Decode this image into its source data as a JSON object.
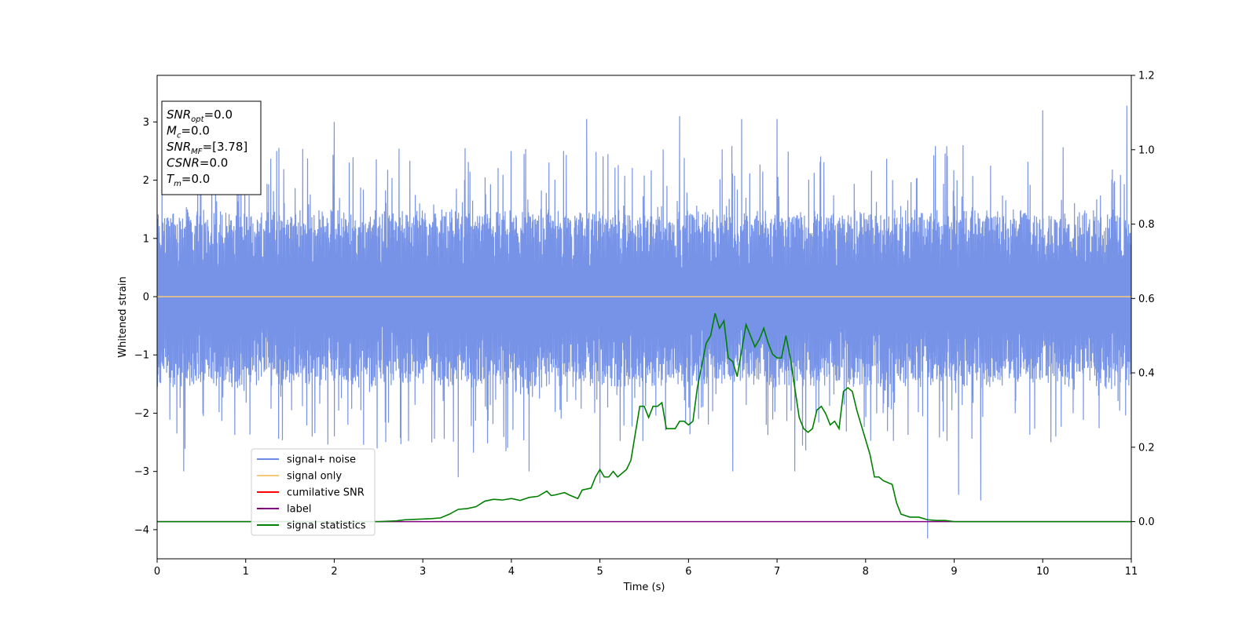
{
  "chart_data": {
    "type": "line",
    "xlabel": "Time (s)",
    "ylabel": "Whitened strain",
    "xlim": [
      0,
      11
    ],
    "ylim": [
      -4.5,
      3.8
    ],
    "y2lim": [
      -0.1,
      1.2
    ],
    "x_ticks": [
      0,
      1,
      2,
      3,
      4,
      5,
      6,
      7,
      8,
      9,
      10,
      11
    ],
    "y_ticks": [
      -4,
      -3,
      -2,
      -1,
      0,
      1,
      2,
      3
    ],
    "y2_ticks": [
      0.0,
      0.2,
      0.4,
      0.6,
      0.8,
      1.0,
      1.2
    ],
    "legend_position": "lower-left",
    "legend": [
      "signal+ noise",
      "signal only",
      "cumilative SNR",
      "label",
      "signal statistics"
    ],
    "colors": {
      "signal_noise": "#6b8ae6",
      "signal_only": "#f5c97a",
      "cumulative_snr": "#ff0000",
      "label": "#800080",
      "signal_statistics": "#008000"
    },
    "info_box": [
      {
        "var": "SNR",
        "sub": "opt",
        "value": "=0.0"
      },
      {
        "var": "M",
        "sub": "c",
        "value": "=0.0"
      },
      {
        "var": "SNR",
        "sub": "MF",
        "value": "=[3.78]"
      },
      {
        "var": "CSNR",
        "sub": "",
        "value": "=0.0"
      },
      {
        "var": "T",
        "sub": "m",
        "value": "=0.0"
      }
    ],
    "series": [
      {
        "name": "signal+ noise",
        "axis": "left",
        "note_shape": "dense noise band",
        "band_low_typical": -1.5,
        "band_high_typical": 1.45,
        "extreme_peaks": [
          {
            "x": 2.0,
            "y": 3.0
          },
          {
            "x": 4.85,
            "y": 3.05
          },
          {
            "x": 5.9,
            "y": 3.1
          },
          {
            "x": 10.0,
            "y": 3.2
          },
          {
            "x": 10.95,
            "y": 3.28
          },
          {
            "x": 6.6,
            "y": 3.05
          },
          {
            "x": 7.0,
            "y": 3.05
          },
          {
            "x": 1.35,
            "y": 2.5
          },
          {
            "x": 9.1,
            "y": 2.6
          }
        ],
        "extreme_troughs": [
          {
            "x": 0.3,
            "y": -3.0
          },
          {
            "x": 3.4,
            "y": -3.1
          },
          {
            "x": 5.0,
            "y": -3.2
          },
          {
            "x": 8.7,
            "y": -4.15
          },
          {
            "x": 9.05,
            "y": -3.4
          },
          {
            "x": 9.3,
            "y": -3.5
          },
          {
            "x": 6.5,
            "y": -3.0
          },
          {
            "x": 7.2,
            "y": -3.0
          },
          {
            "x": 4.2,
            "y": -3.0
          }
        ]
      },
      {
        "name": "signal only",
        "axis": "left",
        "x": [
          0,
          11
        ],
        "y": [
          0,
          0
        ]
      },
      {
        "name": "label",
        "axis": "right",
        "x": [
          0,
          11
        ],
        "y": [
          0,
          0
        ]
      },
      {
        "name": "signal statistics",
        "axis": "right",
        "x": [
          0.0,
          0.5,
          1.0,
          1.5,
          2.0,
          2.5,
          2.7,
          2.8,
          2.9,
          3.0,
          3.1,
          3.2,
          3.3,
          3.4,
          3.5,
          3.6,
          3.7,
          3.8,
          3.9,
          4.0,
          4.1,
          4.2,
          4.3,
          4.4,
          4.45,
          4.5,
          4.6,
          4.65,
          4.75,
          4.8,
          4.9,
          4.95,
          5.0,
          5.05,
          5.1,
          5.15,
          5.2,
          5.3,
          5.35,
          5.45,
          5.5,
          5.55,
          5.6,
          5.65,
          5.7,
          5.75,
          5.8,
          5.85,
          5.9,
          5.95,
          6.0,
          6.05,
          6.1,
          6.15,
          6.2,
          6.25,
          6.3,
          6.35,
          6.4,
          6.45,
          6.5,
          6.55,
          6.6,
          6.65,
          6.7,
          6.75,
          6.8,
          6.85,
          6.9,
          6.95,
          7.0,
          7.05,
          7.1,
          7.15,
          7.2,
          7.25,
          7.3,
          7.35,
          7.4,
          7.45,
          7.5,
          7.55,
          7.6,
          7.65,
          7.7,
          7.75,
          7.8,
          7.85,
          7.9,
          7.95,
          8.0,
          8.05,
          8.1,
          8.15,
          8.2,
          8.25,
          8.3,
          8.35,
          8.4,
          8.5,
          8.6,
          8.7,
          8.8,
          8.9,
          9.0,
          9.2,
          9.5,
          9.8,
          10.0,
          10.5,
          11.0
        ],
        "y": [
          0.0,
          0.0,
          0.0,
          0.0,
          0.0,
          0.0,
          0.002,
          0.005,
          0.006,
          0.007,
          0.008,
          0.01,
          0.02,
          0.033,
          0.035,
          0.04,
          0.055,
          0.06,
          0.058,
          0.062,
          0.057,
          0.065,
          0.068,
          0.082,
          0.07,
          0.072,
          0.078,
          0.072,
          0.062,
          0.085,
          0.09,
          0.12,
          0.14,
          0.12,
          0.12,
          0.135,
          0.12,
          0.14,
          0.165,
          0.31,
          0.31,
          0.28,
          0.31,
          0.31,
          0.32,
          0.25,
          0.25,
          0.25,
          0.27,
          0.27,
          0.26,
          0.27,
          0.36,
          0.42,
          0.48,
          0.5,
          0.56,
          0.52,
          0.54,
          0.44,
          0.43,
          0.39,
          0.46,
          0.53,
          0.5,
          0.47,
          0.49,
          0.52,
          0.48,
          0.45,
          0.44,
          0.44,
          0.5,
          0.44,
          0.36,
          0.28,
          0.25,
          0.24,
          0.25,
          0.3,
          0.31,
          0.29,
          0.26,
          0.27,
          0.25,
          0.35,
          0.36,
          0.35,
          0.3,
          0.26,
          0.22,
          0.18,
          0.12,
          0.12,
          0.11,
          0.105,
          0.1,
          0.05,
          0.02,
          0.012,
          0.012,
          0.005,
          0.003,
          0.003,
          0.0,
          0.0,
          0.0,
          0.0,
          0.0,
          0.0,
          0.0
        ]
      }
    ]
  }
}
